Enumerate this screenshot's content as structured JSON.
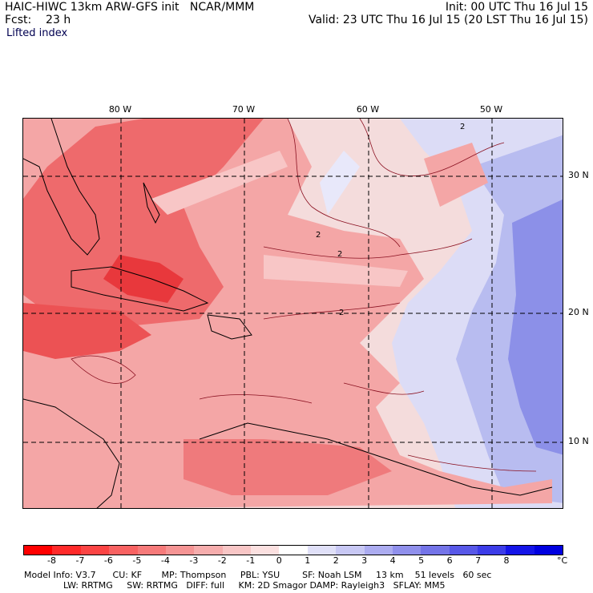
{
  "header": {
    "title": "HAIC-HIWC 13km ARW-GFS init   NCAR/MMM",
    "forecast": "Fcst:    23 h",
    "field": "Lifted index",
    "init": "Init: 00 UTC Thu 16 Jul 15",
    "valid": "Valid: 23 UTC Thu 16 Jul 15 (20 LST Thu 16 Jul 15)"
  },
  "map": {
    "lon_labels": [
      "80 W",
      "70 W",
      "60 W",
      "50 W"
    ],
    "lat_labels": [
      "30 N",
      "20 N",
      "10 N"
    ],
    "contour_label": "2",
    "colors": {
      "strong_neg": "#e8383c",
      "neg": "#f07e80",
      "weak_neg": "#f8c6c6",
      "neutral": "#f4f4ff",
      "pos": "#b8bcf0",
      "strong_pos": "#7a80e8"
    }
  },
  "legend": {
    "ticks": [
      "-8",
      "-7",
      "-6",
      "-5",
      "-4",
      "-3",
      "-2",
      "-1",
      "0",
      "1",
      "2",
      "3",
      "4",
      "5",
      "6",
      "7",
      "8"
    ],
    "unit": "°C",
    "colors": [
      "#ff0000",
      "#ff2a2a",
      "#fb4444",
      "#f86262",
      "#f67a7a",
      "#f59494",
      "#f6adad",
      "#f8c6c6",
      "#fbe0e0",
      "#ffffff",
      "#e0e0f8",
      "#c8c8f4",
      "#acacf0",
      "#9090ec",
      "#7474e8",
      "#5858e8",
      "#3c3ce8",
      "#1414e8",
      "#0000e0"
    ]
  },
  "model_info": {
    "line1": "Model Info: V3.7      CU: KF       MP: Thompson     PBL: YSU        SF: Noah LSM     13 km    51 levels   60 sec",
    "line2": "              LW: RRTMG     SW: RRTMG   DIFF: full     KM: 2D Smagor DAMP: Rayleigh3   SFLAY: MM5"
  }
}
